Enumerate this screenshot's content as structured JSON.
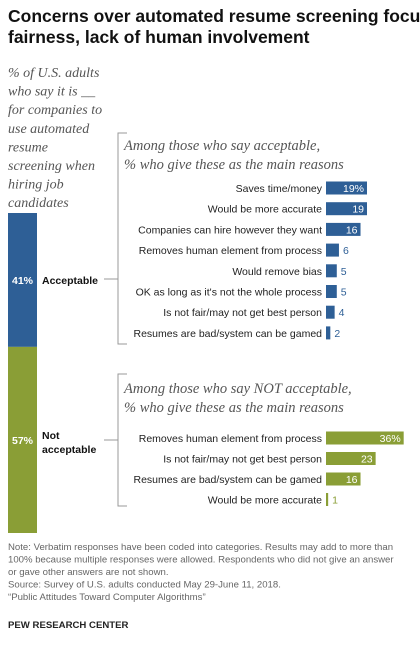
{
  "colors": {
    "acceptable": "#2e5f96",
    "not_acceptable": "#8a9e36",
    "bracket": "#999999",
    "label_on_bar": "#ffffff",
    "label_off_bar": "#2e5f96",
    "label_off_bar_green": "#8a9e36"
  },
  "title_lines": [
    "Concerns over automated resume screening focus on",
    "fairness, lack of human involvement"
  ],
  "question_lines": [
    "% of U.S. adults",
    "who say it is __",
    "for companies to",
    "use automated",
    "resume",
    "screening when",
    "hiring job",
    "candidates"
  ],
  "chart_data": [
    {
      "type": "bar",
      "stacked": true,
      "segments": [
        {
          "label": "Acceptable",
          "value": 41,
          "value_label": "41%"
        },
        {
          "label_lines": [
            "Not",
            "acceptable"
          ],
          "value": 57,
          "value_label": "57%"
        }
      ]
    },
    {
      "type": "bar",
      "orientation": "horizontal",
      "heading_lines": [
        "Among those who say acceptable,",
        "% who give these as the main reasons"
      ],
      "categories": [
        "Saves time/money",
        "Would be more accurate",
        "Companies can hire however they want",
        "Removes human element from process",
        "Would remove bias",
        "OK as long as it's not the whole process",
        "Is not fair/may not get best person",
        "Resumes are bad/system can be gamed"
      ],
      "values": [
        19,
        19,
        16,
        6,
        5,
        5,
        4,
        2
      ],
      "value_labels": [
        "19%",
        "19",
        "16",
        "6",
        "5",
        "5",
        "4",
        "2"
      ]
    },
    {
      "type": "bar",
      "orientation": "horizontal",
      "heading_lines": [
        "Among those who say NOT acceptable,",
        "% who give these as the main reasons"
      ],
      "categories": [
        "Removes human element from process",
        "Is not fair/may not get best person",
        "Resumes are bad/system can be gamed",
        "Would be more accurate"
      ],
      "values": [
        36,
        23,
        16,
        1
      ],
      "value_labels": [
        "36%",
        "23",
        "16",
        "1"
      ]
    }
  ],
  "note_lines": [
    "Note: Verbatim responses have been coded into categories. Results may add to more than",
    "100% because multiple responses were allowed. Respondents who did not give an answer",
    "or gave other answers are not shown.",
    "Source: Survey of U.S. adults conducted May 29-June 11, 2018.",
    "“Public Attitudes Toward Computer Algorithms”"
  ],
  "source_label": "PEW RESEARCH CENTER"
}
